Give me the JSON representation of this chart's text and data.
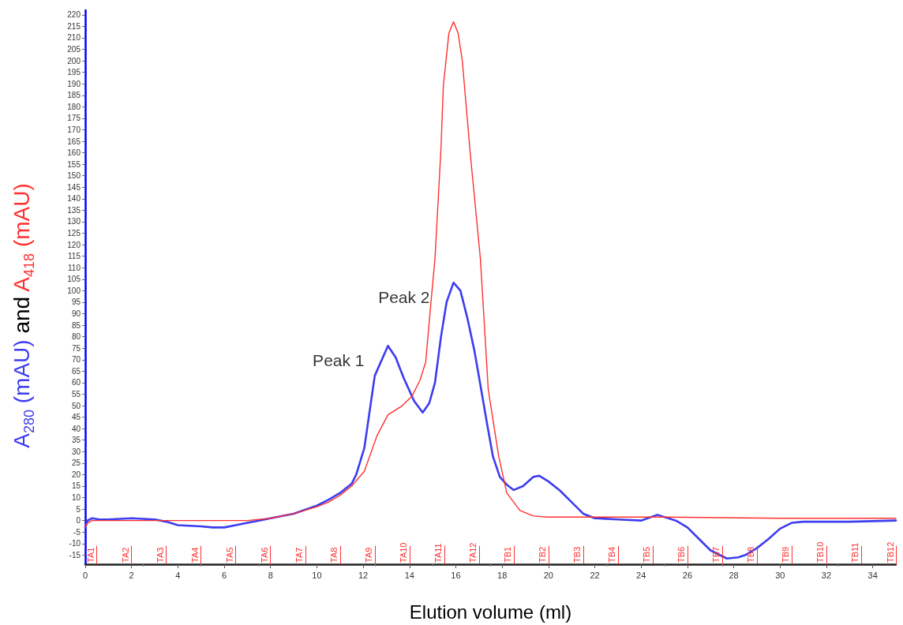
{
  "chart_data": {
    "type": "line",
    "xlabel": "Elution volume (ml)",
    "ylabel": "A$_{280}$ (mAU) and A$_{418}$ (mAU)",
    "xlim": [
      0,
      35
    ],
    "xticks": [
      0,
      2,
      4,
      6,
      8,
      10,
      12,
      14,
      16,
      18,
      20,
      22,
      24,
      26,
      28,
      30,
      32,
      34
    ],
    "ylim": [
      -19,
      222
    ],
    "yticks": [
      -15,
      -10,
      -5,
      0,
      5,
      10,
      15,
      20,
      25,
      30,
      35,
      40,
      45,
      50,
      55,
      60,
      65,
      70,
      75,
      80,
      85,
      90,
      95,
      100,
      105,
      110,
      115,
      120,
      125,
      130,
      135,
      140,
      145,
      150,
      155,
      160,
      165,
      170,
      175,
      180,
      185,
      190,
      195,
      200,
      205,
      210,
      215,
      220
    ],
    "grid": false,
    "marker": "none",
    "line_style": "solid",
    "series": [
      {
        "color": "#3c3cf0",
        "x": [
          0,
          0.1,
          0.3,
          0.6,
          1,
          2,
          3,
          3.5,
          4,
          5,
          5.5,
          6,
          6.5,
          7,
          7.5,
          8,
          9,
          10,
          10.5,
          11,
          11.5,
          11.7,
          12.05,
          12.5,
          13.07,
          13.4,
          13.75,
          14.2,
          14.57,
          14.85,
          15.1,
          15.36,
          15.6,
          15.9,
          16.2,
          16.5,
          16.8,
          17.06,
          17.35,
          17.6,
          17.9,
          18.2,
          18.5,
          18.9,
          19.35,
          19.6,
          20,
          20.5,
          21,
          21.5,
          22,
          23,
          24,
          24.7,
          25.5,
          26,
          26.5,
          27,
          27.7,
          28.2,
          28.5,
          29,
          29.5,
          30,
          30.5,
          31,
          33,
          35
        ],
        "values": [
          -3,
          0,
          1,
          0.5,
          0.5,
          1,
          0.5,
          -0.5,
          -2,
          -2.5,
          -3,
          -3,
          -2,
          -1,
          0,
          1,
          3,
          6.5,
          9,
          12,
          16,
          20,
          31.6,
          63,
          76,
          71,
          62,
          52,
          47,
          51,
          60,
          80,
          95,
          103.5,
          100,
          88,
          74,
          59,
          42,
          28,
          19,
          15.6,
          13.3,
          15,
          19,
          19.5,
          17,
          13,
          8,
          3,
          1,
          0.5,
          0,
          2.5,
          0,
          -3,
          -8,
          -13,
          -16.5,
          -16,
          -15,
          -12,
          -8,
          -3.5,
          -1,
          -0.5,
          -0.5,
          0
        ]
      },
      {
        "color": "#ff3030",
        "x": [
          0,
          0.1,
          0.3,
          1,
          4,
          7,
          8,
          9,
          10,
          10.5,
          11,
          11.5,
          12.05,
          12.6,
          13.07,
          13.65,
          14.1,
          14.45,
          14.7,
          14.9,
          15.1,
          15.36,
          15.46,
          15.7,
          15.9,
          16.1,
          16.28,
          16.62,
          17.06,
          17.4,
          17.85,
          18.2,
          18.77,
          19.35,
          20,
          25,
          30,
          35
        ],
        "values": [
          -3,
          -1,
          0,
          0,
          0,
          0,
          1,
          3,
          6,
          8,
          11,
          15,
          21.4,
          37,
          46,
          49.7,
          54,
          61,
          69,
          92,
          114,
          162,
          189,
          212,
          217,
          212,
          200,
          160,
          114,
          57,
          28,
          12,
          4.4,
          2,
          1.5,
          1.5,
          1,
          1
        ]
      }
    ],
    "annotations": [
      {
        "text": "Peak 1",
        "x": 13.07,
        "y": 76
      },
      {
        "text": "Peak 2",
        "x": 15.9,
        "y": 103.5
      }
    ],
    "ref_lines": [
      {
        "axis": "x",
        "value": 0.5,
        "label": "TA1",
        "color": "#ff3030"
      },
      {
        "axis": "x",
        "value": 2,
        "label": "TA2",
        "color": "#ff3030"
      },
      {
        "axis": "x",
        "value": 3.5,
        "label": "TA3",
        "color": "#ff3030"
      },
      {
        "axis": "x",
        "value": 5,
        "label": "TA4",
        "color": "#ff3030"
      },
      {
        "axis": "x",
        "value": 6.5,
        "label": "TA5",
        "color": "#ff3030"
      },
      {
        "axis": "x",
        "value": 8,
        "label": "TA6",
        "color": "#ff3030"
      },
      {
        "axis": "x",
        "value": 9.5,
        "label": "TA7",
        "color": "#ff3030"
      },
      {
        "axis": "x",
        "value": 11,
        "label": "TA8",
        "color": "#ff3030"
      },
      {
        "axis": "x",
        "value": 12.5,
        "label": "TA9",
        "color": "#ff3030"
      },
      {
        "axis": "x",
        "value": 14,
        "label": "TA10",
        "color": "#ff3030"
      },
      {
        "axis": "x",
        "value": 15.5,
        "label": "TA11",
        "color": "#ff3030"
      },
      {
        "axis": "x",
        "value": 17,
        "label": "TA12",
        "color": "#ff3030"
      },
      {
        "axis": "x",
        "value": 18.5,
        "label": "TB1",
        "color": "#ff3030"
      },
      {
        "axis": "x",
        "value": 20,
        "label": "TB2",
        "color": "#ff3030"
      },
      {
        "axis": "x",
        "value": 21.5,
        "label": "TB3",
        "color": "#ff3030"
      },
      {
        "axis": "x",
        "value": 23,
        "label": "TB4",
        "color": "#ff3030"
      },
      {
        "axis": "x",
        "value": 24.5,
        "label": "TB5",
        "color": "#ff3030"
      },
      {
        "axis": "x",
        "value": 26,
        "label": "TB6",
        "color": "#ff3030"
      },
      {
        "axis": "x",
        "value": 27.5,
        "label": "TB7",
        "color": "#ff3030"
      },
      {
        "axis": "x",
        "value": 29,
        "label": "TB8",
        "color": "#ff3030"
      },
      {
        "axis": "x",
        "value": 30.5,
        "label": "TB9",
        "color": "#ff3030"
      },
      {
        "axis": "x",
        "value": 32,
        "label": "TB10",
        "color": "#ff3030"
      },
      {
        "axis": "x",
        "value": 33.5,
        "label": "TB11",
        "color": "#ff3030"
      },
      {
        "axis": "x",
        "value": 35,
        "label": "TB12",
        "color": "#ff3030"
      }
    ]
  }
}
